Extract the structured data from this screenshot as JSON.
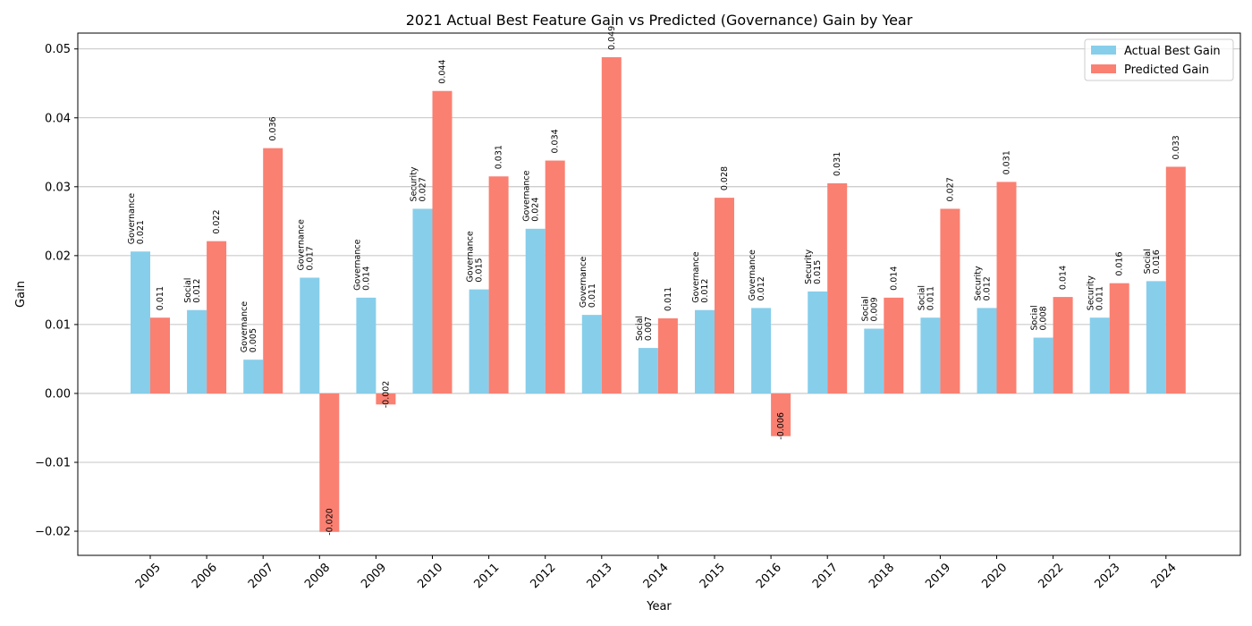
{
  "chart_data": {
    "type": "bar",
    "title": "2021 Actual Best Feature Gain vs Predicted (Governance) Gain by Year",
    "xlabel": "Year",
    "ylabel": "Gain",
    "ylim": [
      -0.0235,
      0.0523
    ],
    "yticks": [
      -0.02,
      -0.01,
      0.0,
      0.01,
      0.02,
      0.03,
      0.04,
      0.05
    ],
    "ytick_labels": [
      "−0.02",
      "−0.01",
      "0.00",
      "0.01",
      "0.02",
      "0.03",
      "0.04",
      "0.05"
    ],
    "grid": "horizontal",
    "legend_position": "top-right",
    "categories": [
      "2005",
      "2006",
      "2007",
      "2008",
      "2009",
      "2010",
      "2011",
      "2012",
      "2013",
      "2014",
      "2015",
      "2016",
      "2017",
      "2018",
      "2019",
      "2020",
      "2022",
      "2023",
      "2024"
    ],
    "series": [
      {
        "name": "Actual Best Gain",
        "color": "#87ceeb",
        "values": [
          0.0206,
          0.0121,
          0.0049,
          0.0168,
          0.0139,
          0.0268,
          0.0151,
          0.0239,
          0.0114,
          0.0066,
          0.0121,
          0.0124,
          0.0148,
          0.0094,
          0.011,
          0.0124,
          0.0081,
          0.011,
          0.0163
        ],
        "value_labels": [
          "0.021",
          "0.012",
          "0.005",
          "0.017",
          "0.014",
          "0.027",
          "0.015",
          "0.024",
          "0.011",
          "0.007",
          "0.012",
          "0.012",
          "0.015",
          "0.009",
          "0.011",
          "0.012",
          "0.008",
          "0.011",
          "0.016"
        ],
        "feature_labels": [
          "Governance",
          "Social",
          "Governance",
          "Governance",
          "Governance",
          "Security",
          "Governance",
          "Governance",
          "Governance",
          "Social",
          "Governance",
          "Governance",
          "Security",
          "Social",
          "Social",
          "Security",
          "Social",
          "Security",
          "Social"
        ]
      },
      {
        "name": "Predicted Gain",
        "color": "#fa8072",
        "values": [
          0.011,
          0.0221,
          0.0356,
          -0.0201,
          -0.0016,
          0.0439,
          0.0315,
          0.0338,
          0.0488,
          0.0109,
          0.0284,
          -0.0062,
          0.0305,
          0.0139,
          0.0268,
          0.0307,
          0.014,
          0.016,
          0.0329
        ],
        "value_labels": [
          "0.011",
          "0.022",
          "0.036",
          "-0.020",
          "-0.002",
          "0.044",
          "0.031",
          "0.034",
          "0.049",
          "0.011",
          "0.028",
          "-0.006",
          "0.031",
          "0.014",
          "0.027",
          "0.031",
          "0.014",
          "0.016",
          "0.033"
        ]
      }
    ]
  }
}
